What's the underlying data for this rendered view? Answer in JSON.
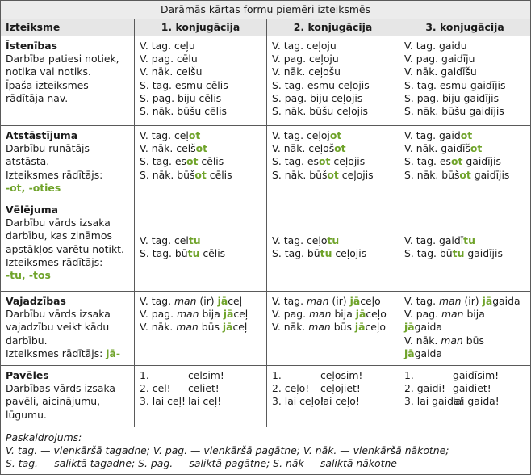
{
  "title": "Darāmās kārtas formu piemēri izteiksmēs",
  "headers": [
    "Izteiksme",
    "1. konjugācija",
    "2. konjugācija",
    "3. konjugācija"
  ],
  "rows": [
    {
      "name": "Īstenības",
      "desc": "Darbība  patiesi notiek,\nnotika vai notiks.\nĪpaša izteiksmes\nrādītāja nav.",
      "indicator": "",
      "cols": [
        [
          [
            {
              "t": "V. tag. ceļu"
            }
          ],
          [
            {
              "t": "V. pag. cēlu"
            }
          ],
          [
            {
              "t": "V. nāk. celšu"
            }
          ],
          [
            {
              "t": "S. tag. esmu cēlis"
            }
          ],
          [
            {
              "t": "S. pag. biju cēlis"
            }
          ],
          [
            {
              "t": "S. nāk. būšu cēlis"
            }
          ]
        ],
        [
          [
            {
              "t": "V. tag. ceļoju"
            }
          ],
          [
            {
              "t": "V. pag. ceļoju"
            }
          ],
          [
            {
              "t": "V. nāk. ceļošu"
            }
          ],
          [
            {
              "t": "S. tag. esmu ceļojis"
            }
          ],
          [
            {
              "t": "S. pag. biju ceļojis"
            }
          ],
          [
            {
              "t": "S. nāk. būšu ceļojis"
            }
          ]
        ],
        [
          [
            {
              "t": "V. tag. gaidu"
            }
          ],
          [
            {
              "t": "V. pag. gaidīju"
            }
          ],
          [
            {
              "t": "V. nāk. gaidīšu"
            }
          ],
          [
            {
              "t": "S. tag. esmu gaidījis"
            }
          ],
          [
            {
              "t": "S. pag. biju gaidījis"
            }
          ],
          [
            {
              "t": "S. nāk. būšu gaidījis"
            }
          ]
        ]
      ]
    },
    {
      "name": "Atstāstījuma",
      "desc": "Darbību runātājs\natstāsta.\nIzteiksmes rādītājs:",
      "indicator": "-ot, -oties",
      "cols": [
        [
          [
            {
              "t": "V. tag. ceļ"
            },
            {
              "t": "ot",
              "g": true
            }
          ],
          [
            {
              "t": "V. nāk. celš"
            },
            {
              "t": "ot",
              "g": true
            }
          ],
          [
            {
              "t": "S. tag. es"
            },
            {
              "t": "ot",
              "g": true
            },
            {
              "t": " cēlis"
            }
          ],
          [
            {
              "t": "S. nāk. būš"
            },
            {
              "t": "ot",
              "g": true
            },
            {
              "t": " cēlis"
            }
          ]
        ],
        [
          [
            {
              "t": "V. tag. ceļoj"
            },
            {
              "t": "ot",
              "g": true
            }
          ],
          [
            {
              "t": "V. nāk. ceļoš"
            },
            {
              "t": "ot",
              "g": true
            }
          ],
          [
            {
              "t": "S. tag. es"
            },
            {
              "t": "ot",
              "g": true
            },
            {
              "t": " ceļojis"
            }
          ],
          [
            {
              "t": "S. nāk. būš"
            },
            {
              "t": "ot",
              "g": true
            },
            {
              "t": " ceļojis"
            }
          ]
        ],
        [
          [
            {
              "t": "V. tag. gaid"
            },
            {
              "t": "ot",
              "g": true
            }
          ],
          [
            {
              "t": "V. nāk. gaidīš"
            },
            {
              "t": "ot",
              "g": true
            }
          ],
          [
            {
              "t": "S. tag. es"
            },
            {
              "t": "ot",
              "g": true
            },
            {
              "t": " gaidījis"
            }
          ],
          [
            {
              "t": "S. nāk. būš"
            },
            {
              "t": "ot",
              "g": true
            },
            {
              "t": " gaidījis"
            }
          ]
        ]
      ]
    },
    {
      "name": "Vēlējuma",
      "desc": "Darbību vārds izsaka\ndarbību, kas zinām​os\napstākļos varētu notikt.\nIzteiksmes rādītājs:",
      "indicator": "-tu, -tos",
      "cols": [
        [
          [
            {
              "t": "V. tag. cel"
            },
            {
              "t": "tu",
              "g": true
            }
          ],
          [
            {
              "t": "S. tag. bū"
            },
            {
              "t": "tu",
              "g": true
            },
            {
              "t": " cēlis"
            }
          ]
        ],
        [
          [
            {
              "t": "V. tag. ceļo"
            },
            {
              "t": "tu",
              "g": true
            }
          ],
          [
            {
              "t": "S. tag. bū"
            },
            {
              "t": "tu",
              "g": true
            },
            {
              "t": " ceļojis"
            }
          ]
        ],
        [
          [
            {
              "t": "V. tag. gaidī"
            },
            {
              "t": "tu",
              "g": true
            }
          ],
          [
            {
              "t": "S. tag. bū"
            },
            {
              "t": "tu",
              "g": true
            },
            {
              "t": " gaidījis"
            }
          ]
        ]
      ]
    },
    {
      "name": "Vajadzības",
      "desc": "Darbību vārds izsaka\nvajadzību veikt kādu\ndarbību.",
      "indicator_prefix": "Izteiksmes rādītājs: ",
      "indicator": "jā-",
      "cols": [
        [
          [
            {
              "t": "V. tag. "
            },
            {
              "t": "man",
              "i": true
            },
            {
              "t": " (ir) "
            },
            {
              "t": "jā",
              "g": true
            },
            {
              "t": "ceļ"
            }
          ],
          [
            {
              "t": "V. pag. "
            },
            {
              "t": "man",
              "i": true
            },
            {
              "t": " bija "
            },
            {
              "t": "jā",
              "g": true
            },
            {
              "t": "ceļ"
            }
          ],
          [
            {
              "t": "V. nāk. "
            },
            {
              "t": "man",
              "i": true
            },
            {
              "t": " būs "
            },
            {
              "t": "jā",
              "g": true
            },
            {
              "t": "ceļ"
            }
          ]
        ],
        [
          [
            {
              "t": "V. tag. "
            },
            {
              "t": "man",
              "i": true
            },
            {
              "t": " (ir) "
            },
            {
              "t": "jā",
              "g": true
            },
            {
              "t": "ceļo"
            }
          ],
          [
            {
              "t": "V. pag. "
            },
            {
              "t": "man",
              "i": true
            },
            {
              "t": " bija "
            },
            {
              "t": "jā",
              "g": true
            },
            {
              "t": "ceļo"
            }
          ],
          [
            {
              "t": "V. nāk. "
            },
            {
              "t": "man",
              "i": true
            },
            {
              "t": " būs "
            },
            {
              "t": "jā",
              "g": true
            },
            {
              "t": "ceļo"
            }
          ]
        ],
        [
          [
            {
              "t": "V. tag. "
            },
            {
              "t": "man",
              "i": true
            },
            {
              "t": " (ir) "
            },
            {
              "t": "jā",
              "g": true
            },
            {
              "t": "gaida"
            }
          ],
          [
            {
              "t": "V. pag. "
            },
            {
              "t": "man",
              "i": true
            },
            {
              "t": " bija"
            }
          ],
          [
            {
              "t": "jā",
              "g": true
            },
            {
              "t": "gaida"
            }
          ],
          [
            {
              "t": "V. nāk. "
            },
            {
              "t": "man",
              "i": true
            },
            {
              "t": " būs"
            }
          ],
          [
            {
              "t": "jā",
              "g": true
            },
            {
              "t": "gaida"
            }
          ]
        ]
      ]
    },
    {
      "name": "Pavēles",
      "desc": "Darbības vārds izsaka\npavēli, aicinājumu,\nlūgumu.",
      "indicator": "",
      "cols": [
        [
          [
            "1. —",
            "celsim!"
          ],
          [
            "2. cel!",
            "celiet!"
          ],
          [
            "3. lai ceļ!",
            "lai ceļ!"
          ]
        ],
        [
          [
            "1. —",
            "ceļosim!"
          ],
          [
            "2. ceļo!",
            "ceļojiet!"
          ],
          [
            "3. lai ceļo!",
            "lai ceļo!"
          ]
        ],
        [
          [
            "1. —",
            "gaidīsim!"
          ],
          [
            "2. gaidi!",
            "gaidiet!"
          ],
          [
            "3. lai gaida!",
            "lai gaida!"
          ]
        ]
      ]
    }
  ],
  "footer": {
    "label": "Paskaidrojums:",
    "line1": "V. tag. — vienkāršā tagadne; V. pag. — vienkāršā pagātne; V. nāk. — vienkāršā nākotne;",
    "line2": "S. tag. — saliktā tagadne; S. pag. — saliktā pagātne; S. nāk — saliktā nākotne"
  },
  "colors": {
    "accent": "#6fa32a",
    "header_bg": "#e6e6e6",
    "border": "#5a5a5a"
  }
}
